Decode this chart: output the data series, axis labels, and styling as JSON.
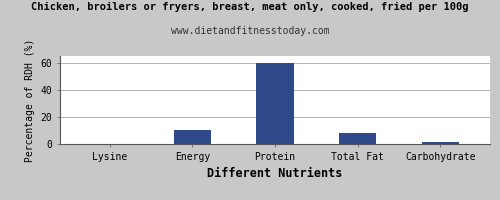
{
  "title": "Chicken, broilers or fryers, breast, meat only, cooked, fried per 100g",
  "subtitle": "www.dietandfitnesstoday.com",
  "categories": [
    "Lysine",
    "Energy",
    "Protein",
    "Total Fat",
    "Carbohydrate"
  ],
  "values": [
    0.3,
    10,
    60,
    8,
    1.2
  ],
  "bar_color": "#2e4a8a",
  "xlabel": "Different Nutrients",
  "ylabel": "Percentage of RDH (%)",
  "ylim": [
    0,
    65
  ],
  "yticks": [
    0,
    20,
    40,
    60
  ],
  "background_color": "#c8c8c8",
  "plot_background": "#ffffff",
  "grid_color": "#aaaaaa",
  "title_fontsize": 7.5,
  "subtitle_fontsize": 7,
  "tick_fontsize": 7,
  "xlabel_fontsize": 8.5,
  "ylabel_fontsize": 7,
  "bar_width": 0.45
}
